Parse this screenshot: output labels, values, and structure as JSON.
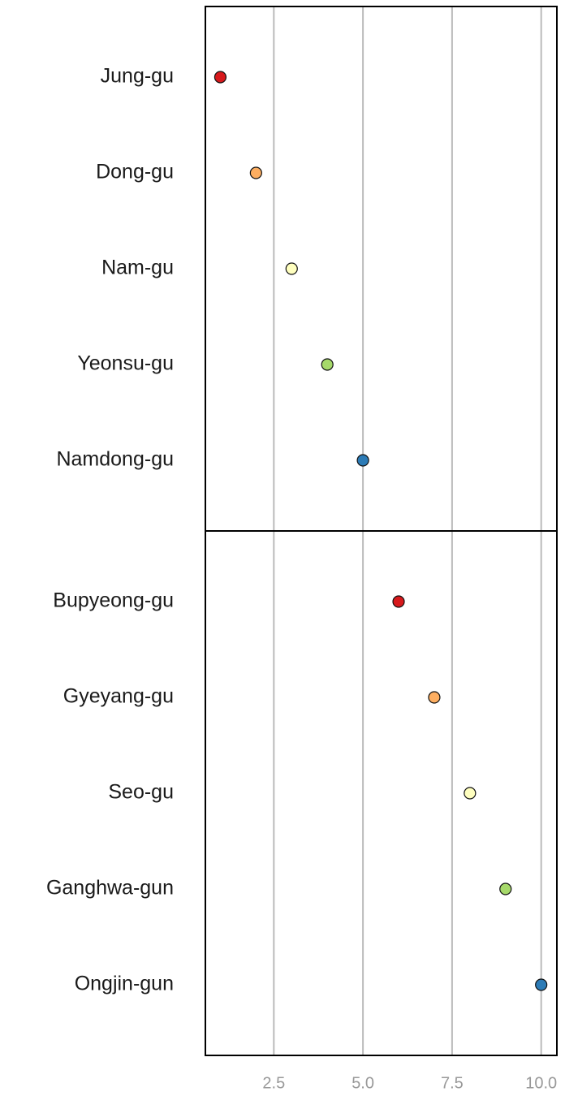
{
  "chart_data": {
    "type": "dot",
    "panels": [
      {
        "categories": [
          "Jung-gu",
          "Dong-gu",
          "Nam-gu",
          "Yeonsu-gu",
          "Namdong-gu"
        ],
        "values": [
          1,
          2,
          3,
          4,
          5
        ],
        "colors": [
          "#d7191c",
          "#fdae61",
          "#ffffbf",
          "#a6d96a",
          "#2c7bb6"
        ]
      },
      {
        "categories": [
          "Bupyeong-gu",
          "Gyeyang-gu",
          "Seo-gu",
          "Ganghwa-gun",
          "Ongjin-gun"
        ],
        "values": [
          6,
          7,
          8,
          9,
          10
        ],
        "colors": [
          "#d7191c",
          "#fdae61",
          "#ffffbf",
          "#a6d96a",
          "#2c7bb6"
        ]
      }
    ],
    "xlim": [
      0.58,
      10.44
    ],
    "xticks": [
      {
        "value": 2.5,
        "label": "2.5"
      },
      {
        "value": 5,
        "label": "5.0"
      },
      {
        "value": 7.5,
        "label": "7.5"
      },
      {
        "value": 10,
        "label": "10.0"
      }
    ],
    "grid": true
  }
}
